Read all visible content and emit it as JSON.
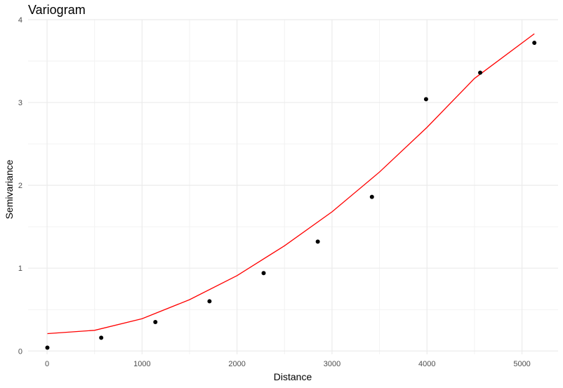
{
  "chart_data": {
    "type": "scatter",
    "title": "Variogram",
    "xlabel": "Distance",
    "ylabel": "Semivariance",
    "xlim": [
      -200,
      5380
    ],
    "ylim": [
      -0.04,
      4.0
    ],
    "x_ticks": [
      "0",
      "1000",
      "2000",
      "3000",
      "4000",
      "5000"
    ],
    "y_ticks": [
      "0",
      "1",
      "2",
      "3",
      "4"
    ],
    "grid": true,
    "legend": "none",
    "series": [
      {
        "type": "scatter",
        "color": "#000000",
        "x": [
          3,
          570,
          1140,
          1710,
          2280,
          2850,
          3420,
          3990,
          4560,
          5130
        ],
        "y": [
          0.04,
          0.16,
          0.35,
          0.6,
          0.94,
          1.32,
          1.86,
          3.04,
          3.36,
          3.72
        ]
      },
      {
        "type": "line",
        "color": "#ff0000",
        "x": [
          3,
          500,
          1000,
          1500,
          2000,
          2500,
          3000,
          3500,
          4000,
          4500,
          5130
        ],
        "y": [
          0.21,
          0.25,
          0.39,
          0.62,
          0.91,
          1.27,
          1.68,
          2.16,
          2.7,
          3.29,
          3.83
        ]
      }
    ]
  }
}
